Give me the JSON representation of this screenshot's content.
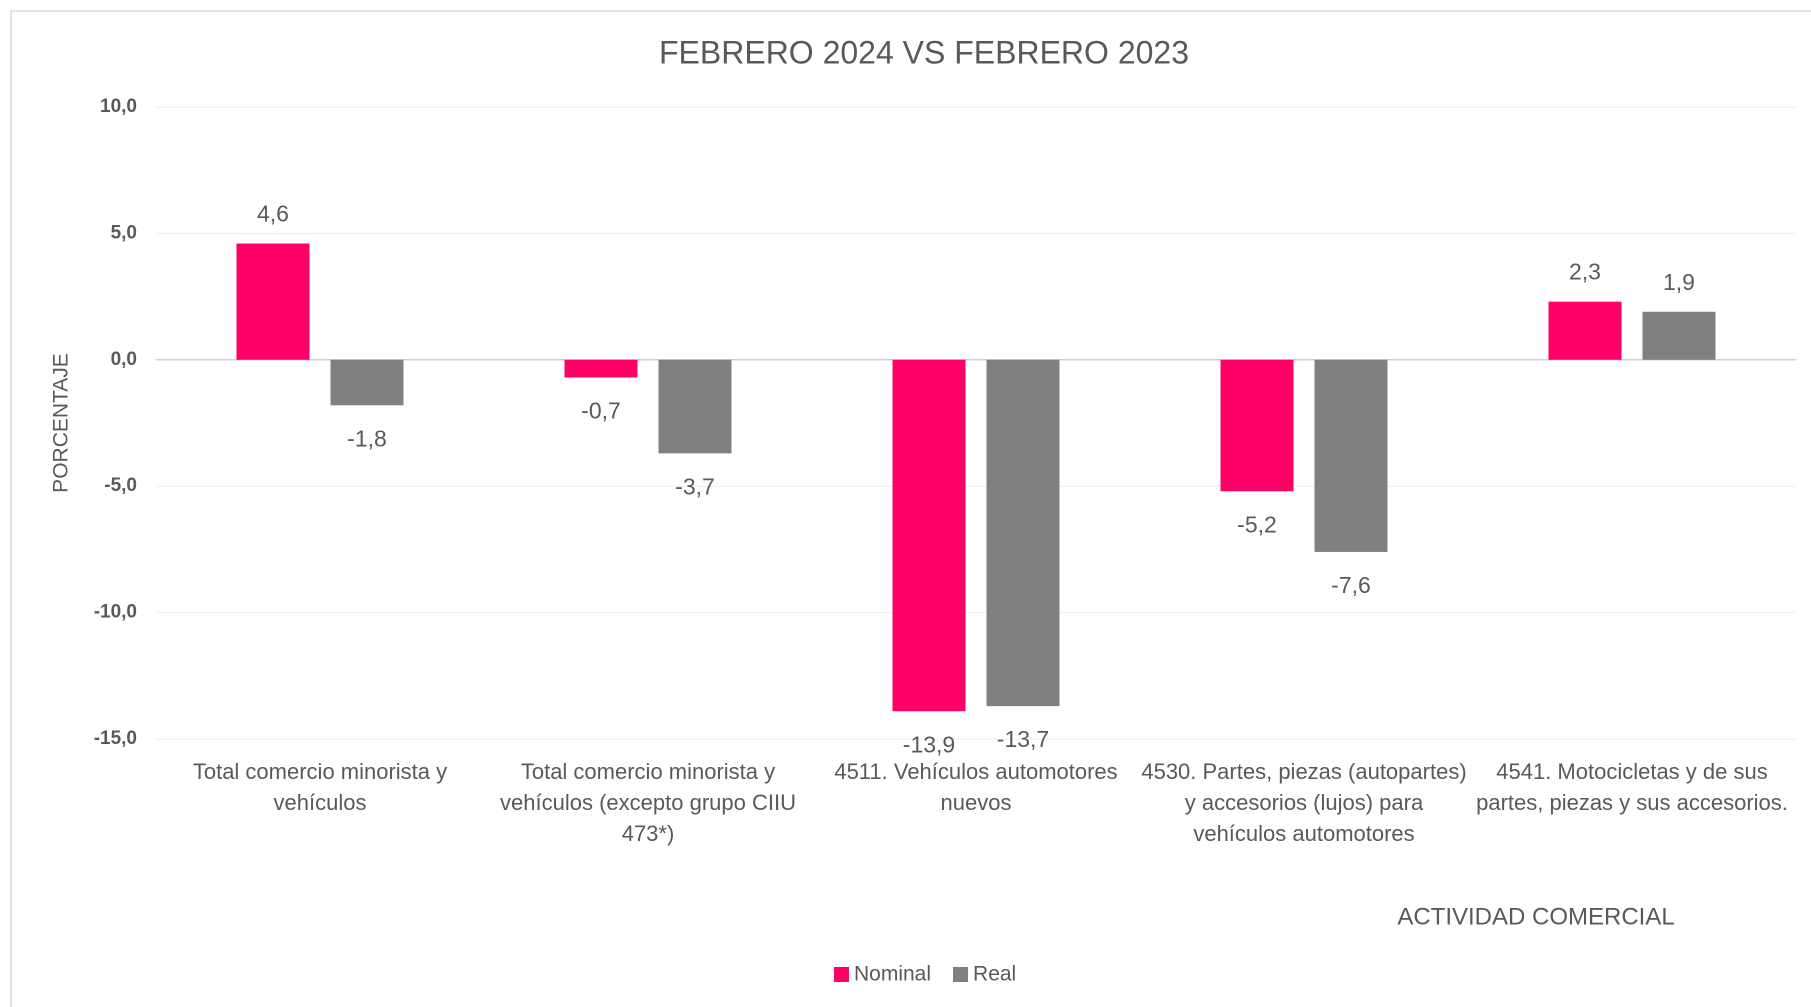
{
  "chart_data": {
    "type": "bar",
    "title": "FEBRERO 2024 VS FEBRERO 2023",
    "y_label": "PORCENTAJE",
    "x_label": "ACTIVIDAD COMERCIAL",
    "categories": [
      "Total comercio minorista y vehículos",
      "Total comercio minorista y vehículos  (excepto grupo CIIU 473*)",
      "4511. Vehículos automotores nuevos",
      "4530. Partes, piezas (autopartes) y accesorios (lujos) para vehículos automotores",
      "4541.  Motocicletas y de sus partes, piezas y sus accesorios."
    ],
    "series": [
      {
        "name": "Nominal",
        "color": "#ff0066",
        "values": [
          4.6,
          -0.7,
          -13.9,
          -5.2,
          2.3
        ],
        "value_labels": [
          "4,6",
          "-0,7",
          "-13,9",
          "-5,2",
          "2,3"
        ]
      },
      {
        "name": "Real",
        "color": "#808080",
        "values": [
          -1.8,
          -3.7,
          -13.7,
          -7.6,
          1.9
        ],
        "value_labels": [
          "-1,8",
          "-3,7",
          "-13,7",
          "-7,6",
          "1,9"
        ]
      }
    ],
    "ylim": [
      -15,
      10
    ],
    "yticks": [
      {
        "value": -15,
        "label": "-15,0"
      },
      {
        "value": -10,
        "label": "-10,0"
      },
      {
        "value": -5,
        "label": "-5,0"
      },
      {
        "value": 0,
        "label": "0,0"
      },
      {
        "value": 5,
        "label": "5,0"
      },
      {
        "value": 10,
        "label": "10,0"
      }
    ],
    "grid": true,
    "legend": "bottom"
  }
}
